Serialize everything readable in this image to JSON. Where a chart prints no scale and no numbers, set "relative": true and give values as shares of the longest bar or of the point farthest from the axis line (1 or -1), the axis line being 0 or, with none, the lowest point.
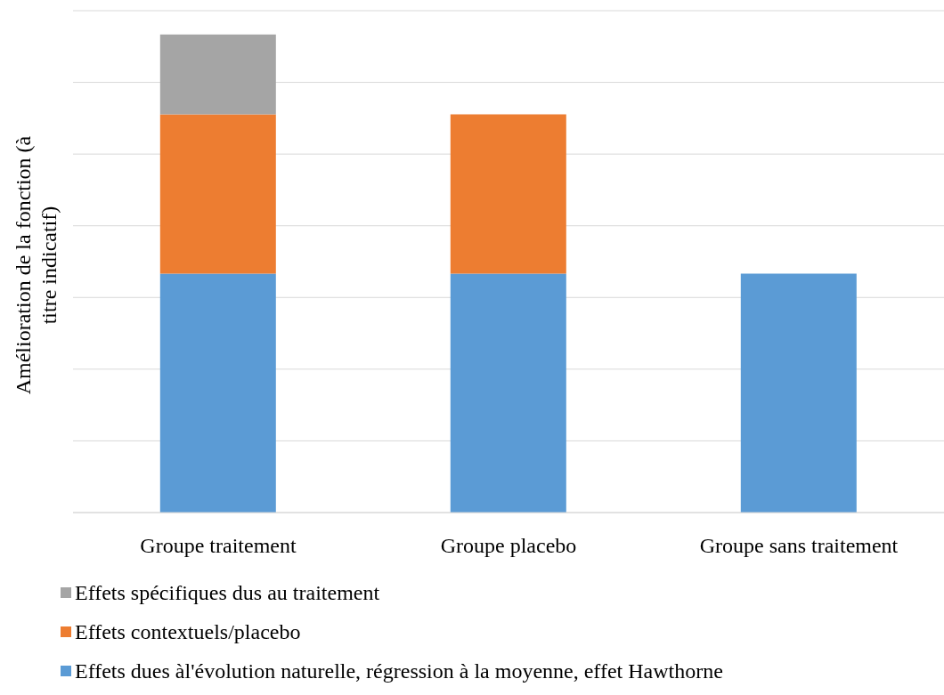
{
  "chart_data": {
    "type": "bar",
    "stacked": true,
    "relative": true,
    "ylabel": "Amélioration de la fonction (à titre indicatif)",
    "categories": [
      "Groupe traitement",
      "Groupe placebo",
      "Groupe sans traitement"
    ],
    "series": [
      {
        "name": "Effets dues àl'évolution naturelle, régression à la moyenne, effet Hawthorne",
        "color": "#5b9bd5",
        "values": [
          0.5,
          0.5,
          0.5
        ]
      },
      {
        "name": "Effets contextuels/placebo",
        "color": "#ed7d31",
        "values": [
          0.333,
          0.333,
          null
        ]
      },
      {
        "name": "Effets spécifiques dus au traitement",
        "color": "#a5a5a5",
        "values": [
          0.167,
          null,
          null
        ]
      }
    ],
    "grid": "y",
    "legend": "bottom"
  }
}
